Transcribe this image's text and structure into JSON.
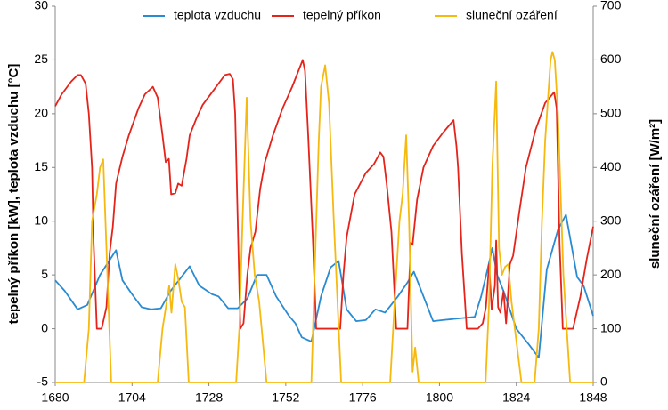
{
  "chart_data": {
    "type": "line",
    "ylabel": "tepelný příkon [kW], teplota vzduchu [°C]",
    "y2label": "sluneční ozáření [W/m²]",
    "xlim": [
      1680,
      1848
    ],
    "xticks": [
      1680,
      1704,
      1728,
      1752,
      1776,
      1800,
      1824,
      1848
    ],
    "ylim": [
      -5,
      30
    ],
    "yticks": [
      -5,
      0,
      5,
      10,
      15,
      20,
      25,
      30
    ],
    "y2lim": [
      0,
      700
    ],
    "y2ticks": [
      0,
      100,
      200,
      300,
      400,
      500,
      600,
      700
    ],
    "legend": "top",
    "series": [
      {
        "name": "teplota vzduchu",
        "color": "#2a8bd2",
        "axis": "y",
        "x": [
          1680,
          1683,
          1687,
          1690,
          1694,
          1699,
          1701,
          1704,
          1707,
          1710,
          1713,
          1716,
          1722,
          1725,
          1729,
          1731,
          1734,
          1737,
          1740,
          1743,
          1746,
          1749,
          1753,
          1755,
          1757,
          1760,
          1763,
          1766,
          1768.5,
          1771,
          1774,
          1777,
          1780,
          1783,
          1787,
          1790,
          1792,
          1795,
          1798,
          1801,
          1807.5,
          1811,
          1813,
          1815,
          1816.5,
          1818,
          1820,
          1824,
          1828,
          1831,
          1833.5,
          1837,
          1839.5,
          1843,
          1845,
          1848
        ],
        "values": [
          4.5,
          3.5,
          1.8,
          2.2,
          5,
          7.3,
          4.5,
          3.2,
          2,
          1.8,
          1.9,
          3.5,
          5.8,
          4,
          3.2,
          3,
          1.9,
          1.9,
          2.8,
          5,
          5,
          3,
          1.2,
          0.5,
          -0.8,
          -1.2,
          3,
          5.7,
          6.3,
          1.8,
          0.7,
          0.8,
          1.8,
          1.5,
          3,
          4.3,
          5.3,
          3,
          0.7,
          0.8,
          1,
          1.1,
          3,
          5.5,
          7.5,
          5,
          3.5,
          0,
          -1.5,
          -2.7,
          5.5,
          9.2,
          10.6,
          4.8,
          4,
          1.2
        ]
      },
      {
        "name": "tepelný příkon",
        "color": "#e5231b",
        "axis": "y",
        "x": [
          1680,
          1682,
          1685,
          1687,
          1688,
          1689.5,
          1690.5,
          1691.5,
          1692,
          1693,
          1694.5,
          1696,
          1697,
          1698,
          1699,
          1701,
          1703,
          1706,
          1708,
          1710.5,
          1712,
          1713.5,
          1714.5,
          1715.5,
          1716.2,
          1717.5,
          1718.4,
          1719.5,
          1721,
          1722,
          1724,
          1726,
          1729,
          1733,
          1734.5,
          1735.5,
          1736.2,
          1737,
          1737.8,
          1738.8,
          1740,
          1741,
          1742.5,
          1744,
          1745.5,
          1748,
          1751,
          1754,
          1757.3,
          1758,
          1759,
          1760.5,
          1761.5,
          1769,
          1770,
          1771,
          1773.5,
          1777,
          1779.5,
          1781.5,
          1782.5,
          1783.5,
          1785,
          1786.5,
          1790,
          1791,
          1791.6,
          1793,
          1795,
          1798,
          1801,
          1804.4,
          1805.3,
          1805.8,
          1807,
          1808.5,
          1812,
          1813.5,
          1814.5,
          1815.5,
          1816.3,
          1817.3,
          1817.7,
          1818.3,
          1819,
          1820,
          1820.8,
          1822,
          1823,
          1825,
          1827,
          1830,
          1833,
          1835.8,
          1836.6,
          1837.5,
          1838.5,
          1841.7,
          1844,
          1846,
          1848
        ],
        "values": [
          20.7,
          21.8,
          23,
          23.6,
          23.6,
          22.8,
          20,
          15,
          8,
          0,
          0,
          2,
          7,
          9.5,
          13.5,
          16,
          18,
          20.5,
          21.8,
          22.5,
          21.5,
          18,
          15.5,
          15.8,
          12.5,
          12.6,
          13.5,
          13.3,
          15.8,
          18,
          19.5,
          20.8,
          22,
          23.6,
          23.7,
          23.2,
          20,
          10,
          0,
          0.5,
          5,
          7.5,
          9,
          13,
          15.5,
          18,
          20.5,
          22.5,
          25,
          24,
          18,
          8,
          0,
          0,
          5,
          8.5,
          12.5,
          14.5,
          15.3,
          16.4,
          16,
          13.5,
          9,
          0,
          0,
          8,
          7.8,
          12,
          15,
          17,
          18.2,
          19.4,
          17,
          15,
          7,
          0,
          0,
          0.5,
          2,
          6,
          1.8,
          4,
          8.2,
          2,
          1.5,
          3.5,
          0.5,
          6,
          6.8,
          11,
          15,
          18.5,
          21,
          22,
          20.5,
          8,
          0,
          0,
          3,
          6.5,
          9.5
        ]
      },
      {
        "name": "sluneční ozáření",
        "color": "#f6b90f",
        "axis": "y2",
        "x": [
          1680,
          1689,
          1690.5,
          1691.5,
          1693,
          1694,
          1695,
          1696,
          1697.5,
          1712,
          1713.5,
          1715.6,
          1716.3,
          1717.5,
          1718.5,
          1719.5,
          1720.5,
          1721.7,
          1736.5,
          1737.5,
          1738.5,
          1739.8,
          1741,
          1742.3,
          1743.7,
          1746,
          1760,
          1761,
          1762.3,
          1763,
          1764.3,
          1765.5,
          1767,
          1769.3,
          1784.6,
          1786,
          1787.5,
          1788.5,
          1789.6,
          1790.5,
          1791.2,
          1791.6,
          1792.4,
          1793.5,
          1814.4,
          1815.5,
          1816.5,
          1817.7,
          1818.6,
          1819.5,
          1820.5,
          1821.5,
          1822.5,
          1825.6,
          1829.7,
          1831,
          1832,
          1833,
          1834.7,
          1835.3,
          1836,
          1837,
          1838.7,
          1840.8,
          1848
        ],
        "values": [
          0,
          0,
          100,
          300,
          350,
          400,
          415,
          250,
          0,
          0,
          100,
          180,
          130,
          220,
          190,
          150,
          140,
          0,
          0,
          100,
          300,
          530,
          300,
          200,
          150,
          0,
          0,
          200,
          450,
          550,
          590,
          520,
          300,
          0,
          0,
          150,
          300,
          350,
          460,
          300,
          120,
          20,
          65,
          0,
          0,
          150,
          400,
          560,
          250,
          200,
          215,
          220,
          150,
          0,
          0,
          100,
          300,
          450,
          600,
          615,
          600,
          500,
          200,
          0,
          0
        ]
      }
    ]
  }
}
